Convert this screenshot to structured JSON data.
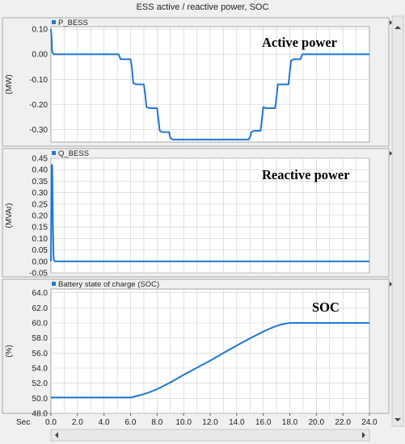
{
  "window": {
    "title": "ESS active / reactive power, SOC"
  },
  "footer": {
    "time_unit": "Sec"
  },
  "chart_data": [
    {
      "type": "line",
      "legend": "P_BESS",
      "annotation": "Active power",
      "ylabel": "(MW)",
      "xlim": [
        0,
        24
      ],
      "ylim": [
        -0.35,
        0.11
      ],
      "yticks": [
        "0.10",
        "0.00",
        "-0.10",
        "-0.20",
        "-0.30"
      ],
      "ytick_values": [
        0.1,
        0.0,
        -0.1,
        -0.2,
        -0.3
      ],
      "grid": true,
      "color": "#1f77d4",
      "series": [
        {
          "x": [
            0,
            0.05,
            0.1,
            0.2,
            5.1,
            5.25,
            6.0,
            6.1,
            6.2,
            6.4,
            7.0,
            7.1,
            7.2,
            7.4,
            8.0,
            8.1,
            8.2,
            8.4,
            8.9,
            9.0,
            9.2,
            9.4,
            14.9,
            15.0,
            15.1,
            15.3,
            15.8,
            15.9,
            16.0,
            16.2,
            16.9,
            17.0,
            17.1,
            17.3,
            17.9,
            18.0,
            18.1,
            18.3,
            18.8,
            18.95,
            24
          ],
          "y": [
            0.1,
            0.07,
            0.01,
            0.0,
            0.0,
            -0.02,
            -0.02,
            -0.05,
            -0.115,
            -0.12,
            -0.12,
            -0.16,
            -0.21,
            -0.215,
            -0.215,
            -0.26,
            -0.305,
            -0.31,
            -0.31,
            -0.335,
            -0.34,
            -0.34,
            -0.34,
            -0.33,
            -0.31,
            -0.305,
            -0.305,
            -0.26,
            -0.21,
            -0.215,
            -0.215,
            -0.17,
            -0.12,
            -0.12,
            -0.12,
            -0.07,
            -0.025,
            -0.02,
            -0.02,
            0.0,
            0.0
          ]
        }
      ]
    },
    {
      "type": "line",
      "legend": "Q_BESS",
      "annotation": "Reactive power",
      "ylabel": "(MVAr)",
      "xlim": [
        0,
        24
      ],
      "ylim": [
        -0.05,
        0.45
      ],
      "yticks": [
        "0.45",
        "0.40",
        "0.35",
        "0.30",
        "0.25",
        "0.20",
        "0.15",
        "0.10",
        "0.05",
        "0.00",
        "-0.05"
      ],
      "ytick_values": [
        0.45,
        0.4,
        0.35,
        0.3,
        0.25,
        0.2,
        0.15,
        0.1,
        0.05,
        0.0,
        -0.05
      ],
      "grid": true,
      "color": "#1f77d4",
      "series": [
        {
          "x": [
            0,
            0.05,
            0.1,
            0.15,
            0.2,
            0.3,
            24
          ],
          "y": [
            0.0,
            0.42,
            0.42,
            0.15,
            0.01,
            0.0,
            0.0
          ]
        }
      ]
    },
    {
      "type": "line",
      "legend": "Battery state of charge (SOC)",
      "annotation": "SOC",
      "ylabel": "(%)",
      "xlim": [
        0,
        24
      ],
      "ylim": [
        48,
        64.5
      ],
      "yticks": [
        "64.0",
        "62.0",
        "60.0",
        "58.0",
        "56.0",
        "54.0",
        "52.0",
        "50.0",
        "48.0"
      ],
      "ytick_values": [
        64,
        62,
        60,
        58,
        56,
        54,
        52,
        50,
        48
      ],
      "xticks": [
        "0.0",
        "2.0",
        "4.0",
        "6.0",
        "8.0",
        "10.0",
        "12.0",
        "14.0",
        "16.0",
        "18.0",
        "20.0",
        "22.0",
        "24.0"
      ],
      "xtick_values": [
        0,
        2,
        4,
        6,
        8,
        10,
        12,
        14,
        16,
        18,
        20,
        22,
        24
      ],
      "grid": true,
      "color": "#1f77d4",
      "series": [
        {
          "x": [
            0,
            6.0,
            6.5,
            7.0,
            7.5,
            8.0,
            9.0,
            10.0,
            11.0,
            12.0,
            13.0,
            14.0,
            15.0,
            16.0,
            16.5,
            17.0,
            17.5,
            18.0,
            18.3,
            24
          ],
          "y": [
            50.1,
            50.1,
            50.3,
            50.55,
            50.85,
            51.2,
            52.1,
            53.1,
            54.05,
            55.0,
            56.0,
            57.0,
            57.95,
            58.85,
            59.25,
            59.6,
            59.85,
            60.0,
            60.0,
            60.0
          ]
        }
      ]
    }
  ]
}
